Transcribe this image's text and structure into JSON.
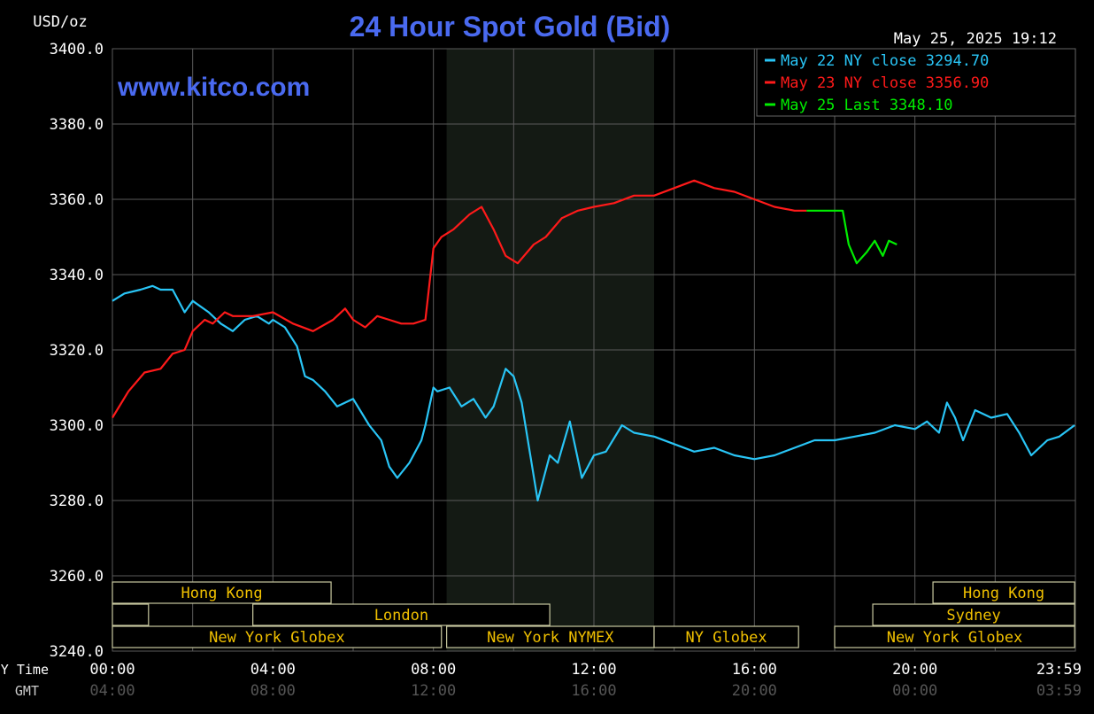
{
  "chart_data": {
    "type": "line",
    "title": "24 Hour Spot Gold (Bid)",
    "website": "www.kitco.com",
    "ylabel": "USD/oz",
    "timestamp": "May 25, 2025 19:12",
    "ylim": [
      3240,
      3400
    ],
    "xlim": [
      0,
      24
    ],
    "y_ticks": [
      "3400.0",
      "3380.0",
      "3360.0",
      "3340.0",
      "3320.0",
      "3300.0",
      "3280.0",
      "3260.0",
      "3240.0"
    ],
    "y_tick_values": [
      3400,
      3380,
      3360,
      3340,
      3320,
      3300,
      3280,
      3260,
      3240
    ],
    "x_row_labels": {
      "ny": "NY Time",
      "gmt": "GMT"
    },
    "x_ticks_ny": [
      "00:00",
      "04:00",
      "08:00",
      "12:00",
      "16:00",
      "20:00",
      "23:59"
    ],
    "x_ticks_gmt": [
      "04:00",
      "08:00",
      "12:00",
      "16:00",
      "20:00",
      "00:00",
      "03:59"
    ],
    "x_tick_values": [
      0,
      4,
      8,
      12,
      16,
      20,
      23.98
    ],
    "grid": true,
    "legend_position": "top-right",
    "shaded_session": {
      "start": 8.33,
      "end": 13.5
    },
    "series": [
      {
        "name": "May 22 NY close 3294.70",
        "color": "#29c5f6",
        "x": [
          0.0,
          0.3,
          0.7,
          1.0,
          1.2,
          1.5,
          1.8,
          2.0,
          2.4,
          2.7,
          3.0,
          3.3,
          3.6,
          3.9,
          4.0,
          4.3,
          4.6,
          4.8,
          5.0,
          5.3,
          5.6,
          6.0,
          6.4,
          6.7,
          6.9,
          7.1,
          7.4,
          7.7,
          7.8,
          8.0,
          8.1,
          8.4,
          8.7,
          9.0,
          9.3,
          9.5,
          9.8,
          10.0,
          10.2,
          10.6,
          10.9,
          11.1,
          11.4,
          11.7,
          12.0,
          12.3,
          12.7,
          13.0,
          13.5,
          14.0,
          14.5,
          15.0,
          15.5,
          16.0,
          16.5,
          17.0,
          17.5,
          18.0,
          18.5,
          19.0,
          19.5,
          20.0,
          20.3,
          20.6,
          20.8,
          21.0,
          21.2,
          21.5,
          21.9,
          22.3,
          22.6,
          22.9,
          23.3,
          23.6,
          23.98
        ],
        "values": [
          3333,
          3335,
          3336,
          3337,
          3336,
          3336,
          3330,
          3333,
          3330,
          3327,
          3325,
          3328,
          3329,
          3327,
          3328,
          3326,
          3321,
          3313,
          3312,
          3309,
          3305,
          3307,
          3300,
          3296,
          3289,
          3286,
          3290,
          3296,
          3300,
          3310,
          3309,
          3310,
          3305,
          3307,
          3302,
          3305,
          3315,
          3313,
          3306,
          3280,
          3292,
          3290,
          3301,
          3286,
          3292,
          3293,
          3300,
          3298,
          3297,
          3295,
          3293,
          3294,
          3292,
          3291,
          3292,
          3294,
          3296,
          3296,
          3297,
          3298,
          3300,
          3299,
          3301,
          3298,
          3306,
          3302,
          3296,
          3304,
          3302,
          3303,
          3298,
          3292,
          3296,
          3297,
          3300
        ]
      },
      {
        "name": "May 23 NY close 3356.90",
        "color": "#ff1a1a",
        "x": [
          0.0,
          0.4,
          0.8,
          1.2,
          1.5,
          1.8,
          2.0,
          2.3,
          2.5,
          2.8,
          3.0,
          3.5,
          4.0,
          4.5,
          5.0,
          5.5,
          5.8,
          6.0,
          6.3,
          6.6,
          6.9,
          7.2,
          7.5,
          7.8,
          8.0,
          8.2,
          8.5,
          8.9,
          9.2,
          9.5,
          9.8,
          10.1,
          10.5,
          10.8,
          11.2,
          11.6,
          12.0,
          12.5,
          13.0,
          13.5,
          14.0,
          14.5,
          15.0,
          15.5,
          16.0,
          16.5,
          17.0,
          17.3
        ],
        "values": [
          3302,
          3309,
          3314,
          3315,
          3319,
          3320,
          3325,
          3328,
          3327,
          3330,
          3329,
          3329,
          3330,
          3327,
          3325,
          3328,
          3331,
          3328,
          3326,
          3329,
          3328,
          3327,
          3327,
          3328,
          3347,
          3350,
          3352,
          3356,
          3358,
          3352,
          3345,
          3343,
          3348,
          3350,
          3355,
          3357,
          3358,
          3359,
          3361,
          3361,
          3363,
          3365,
          3363,
          3362,
          3360,
          3358,
          3357,
          3357
        ]
      },
      {
        "name": "May 25 Last 3348.10",
        "color": "#00ee00",
        "x": [
          17.3,
          17.8,
          18.2,
          18.35,
          18.55,
          18.8,
          19.0,
          19.2,
          19.35,
          19.55
        ],
        "values": [
          3357,
          3357,
          3357,
          3348,
          3343,
          3346,
          3349,
          3345,
          3349,
          3348
        ]
      }
    ],
    "sessions": [
      {
        "label": "Hong Kong",
        "start": 0.0,
        "end": 5.45,
        "row": 0
      },
      {
        "label": "Hong Kong",
        "start": 20.45,
        "end": 23.98,
        "row": 0
      },
      {
        "label": "",
        "start": 0.0,
        "end": 0.9,
        "row": 1
      },
      {
        "label": "London",
        "start": 3.5,
        "end": 10.9,
        "row": 1
      },
      {
        "label": "Sydney",
        "start": 18.95,
        "end": 23.98,
        "row": 1
      },
      {
        "label": "New York Globex",
        "start": 0.0,
        "end": 8.2,
        "row": 2
      },
      {
        "label": "New York NYMEX",
        "start": 8.33,
        "end": 13.5,
        "row": 2
      },
      {
        "label": "NY Globex",
        "start": 13.5,
        "end": 17.1,
        "row": 2
      },
      {
        "label": "New York Globex",
        "start": 18.0,
        "end": 23.98,
        "row": 2
      }
    ]
  }
}
